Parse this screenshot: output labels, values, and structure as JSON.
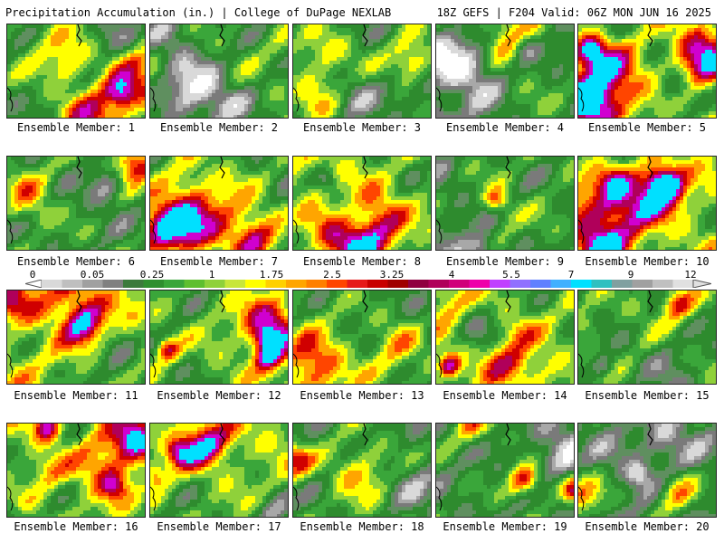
{
  "header": {
    "left_title": "Precipitation Accumulation (in.) | College of DuPage NEXLAB",
    "right_title": "18Z GEFS | F204 Valid: 06Z MON JUN 16 2025"
  },
  "colorbar": {
    "tick_labels": [
      "0",
      "0.05",
      "0.25",
      "1",
      "1.75",
      "2.5",
      "3.25",
      "4",
      "5.5",
      "7",
      "9",
      "12"
    ],
    "colors": [
      "#d9d9d9",
      "#bfbfbf",
      "#a0a0a0",
      "#808080",
      "#3c7a3c",
      "#2f8f2f",
      "#3aa63a",
      "#5fbf2f",
      "#8fd13a",
      "#c8e63a",
      "#ffff00",
      "#ffd000",
      "#ffa500",
      "#ff7f00",
      "#ff4500",
      "#e61a1a",
      "#c80000",
      "#a00000",
      "#900040",
      "#b0005a",
      "#d0007a",
      "#ee00aa",
      "#c040ff",
      "#9070ff",
      "#6080ff",
      "#40b0ff",
      "#00e0ff",
      "#30c0c0",
      "#80a0a0",
      "#a0a0a0",
      "#c0c0c0",
      "#e0e0e0"
    ]
  },
  "panel_palette": [
    "#ffffff",
    "#d9d9d9",
    "#a8a8a8",
    "#7a7a7a",
    "#5f8f5f",
    "#2e8b2e",
    "#3aa63a",
    "#8fd13a",
    "#ffff00",
    "#ffa500",
    "#ff4500",
    "#d00000",
    "#b0005a",
    "#d000d0",
    "#00e0ff"
  ],
  "members": [
    {
      "label": "Ensemble Member: 1",
      "wetness": 0.55
    },
    {
      "label": "Ensemble Member: 2",
      "wetness": 0.6
    },
    {
      "label": "Ensemble Member: 3",
      "wetness": 0.55
    },
    {
      "label": "Ensemble Member: 4",
      "wetness": 0.55
    },
    {
      "label": "Ensemble Member: 5",
      "wetness": 0.65
    },
    {
      "label": "Ensemble Member: 6",
      "wetness": 0.5
    },
    {
      "label": "Ensemble Member: 7",
      "wetness": 0.55
    },
    {
      "label": "Ensemble Member: 8",
      "wetness": 0.65
    },
    {
      "label": "Ensemble Member: 9",
      "wetness": 0.55
    },
    {
      "label": "Ensemble Member: 10",
      "wetness": 0.75
    },
    {
      "label": "Ensemble Member: 11",
      "wetness": 0.8
    },
    {
      "label": "Ensemble Member: 12",
      "wetness": 0.6
    },
    {
      "label": "Ensemble Member: 13",
      "wetness": 0.6
    },
    {
      "label": "Ensemble Member: 14",
      "wetness": 0.65
    },
    {
      "label": "Ensemble Member: 15",
      "wetness": 0.55
    },
    {
      "label": "Ensemble Member: 16",
      "wetness": 0.7
    },
    {
      "label": "Ensemble Member: 17",
      "wetness": 0.65
    },
    {
      "label": "Ensemble Member: 18",
      "wetness": 0.5
    },
    {
      "label": "Ensemble Member: 19",
      "wetness": 0.45
    },
    {
      "label": "Ensemble Member: 20",
      "wetness": 0.35
    }
  ]
}
